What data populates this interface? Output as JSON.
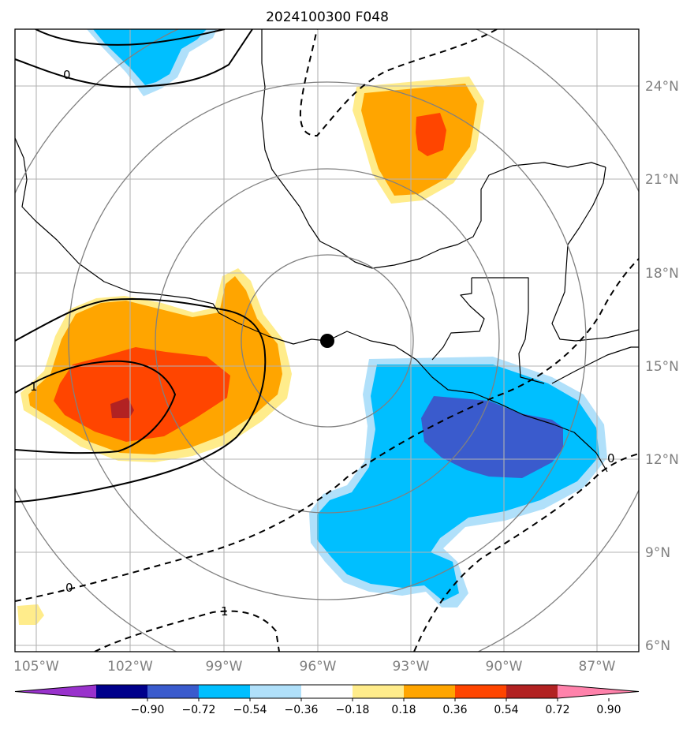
{
  "title": "2024100300 F048",
  "map": {
    "lon_range_deg": [
      -106,
      -85.5
    ],
    "lat_range_deg": [
      5.8,
      26
    ],
    "center_marker": {
      "lon": -95.6,
      "lat": 15.8
    },
    "range_rings": 4,
    "grid_color": "#b3b3b3",
    "coastline_color": "#000000"
  },
  "axes": {
    "lat_ticks": [
      "6°N",
      "9°N",
      "12°N",
      "15°N",
      "18°N",
      "21°N",
      "24°N"
    ],
    "lon_ticks": [
      "105°W",
      "102°W",
      "99°W",
      "96°W",
      "93°W",
      "90°W",
      "87°W"
    ]
  },
  "colorbar": {
    "colors": [
      "#9932cc",
      "#00008b",
      "#3a5bcd",
      "#00bfff",
      "#b0e0fa",
      "#ffffff",
      "#ffec8b",
      "#ffa500",
      "#ff4500",
      "#b22222",
      "#ff82ab"
    ],
    "labels": [
      "−0.90",
      "−0.72",
      "−0.54",
      "−0.36",
      "−0.18",
      "0.18",
      "0.36",
      "0.54",
      "0.72",
      "0.90"
    ]
  },
  "contour_labels": [
    {
      "text": "0"
    },
    {
      "text": "1"
    },
    {
      "text": "0"
    },
    {
      "text": "1"
    },
    {
      "text": "0"
    }
  ]
}
